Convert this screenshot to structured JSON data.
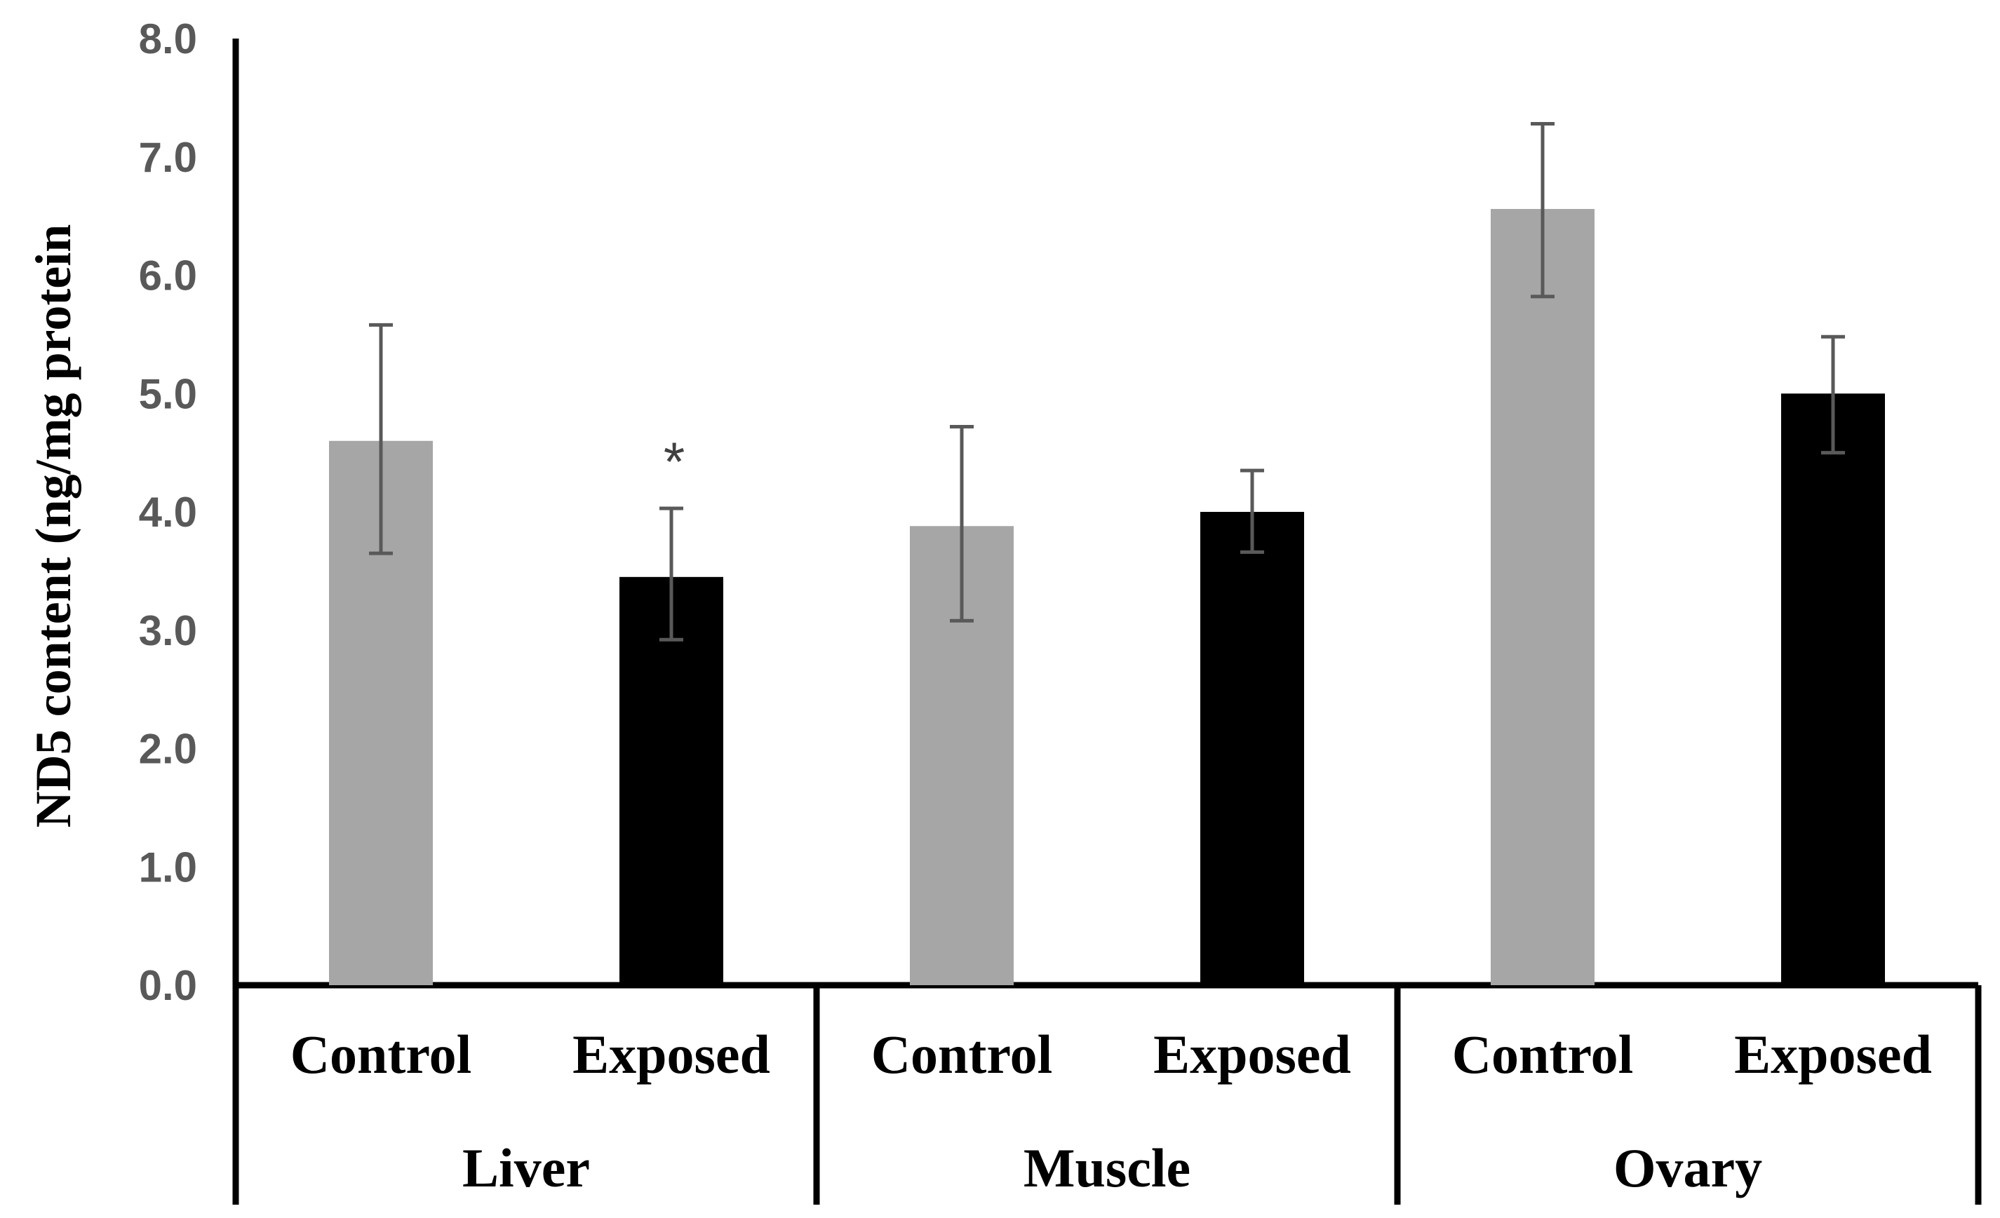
{
  "chart_data": {
    "type": "bar",
    "ylabel": "ND5 content (ng/mg protein",
    "ylim": [
      0,
      8
    ],
    "yticks": [
      0,
      1,
      2,
      3,
      4,
      5,
      6,
      7,
      8
    ],
    "ytick_labels": [
      "0.0",
      "1.0",
      "2.0",
      "3.0",
      "4.0",
      "5.0",
      "6.0",
      "7.0",
      "8.0"
    ],
    "grid": false,
    "legend": "none",
    "groups": [
      {
        "name": "Liver",
        "bars": [
          {
            "label": "Control",
            "value": 4.6,
            "err_low": 3.65,
            "err_high": 5.58,
            "color": "#a6a6a6",
            "annotation": ""
          },
          {
            "label": "Exposed",
            "value": 3.45,
            "err_low": 2.92,
            "err_high": 4.03,
            "color": "#000000",
            "annotation": "*"
          }
        ]
      },
      {
        "name": "Muscle",
        "bars": [
          {
            "label": "Control",
            "value": 3.88,
            "err_low": 3.08,
            "err_high": 4.72,
            "color": "#a6a6a6",
            "annotation": ""
          },
          {
            "label": "Exposed",
            "value": 4.0,
            "err_low": 3.66,
            "err_high": 4.35,
            "color": "#000000",
            "annotation": ""
          }
        ]
      },
      {
        "name": "Ovary",
        "bars": [
          {
            "label": "Control",
            "value": 6.56,
            "err_low": 5.82,
            "err_high": 7.28,
            "color": "#a6a6a6",
            "annotation": ""
          },
          {
            "label": "Exposed",
            "value": 5.0,
            "err_low": 4.5,
            "err_high": 5.48,
            "color": "#000000",
            "annotation": ""
          }
        ]
      }
    ]
  }
}
